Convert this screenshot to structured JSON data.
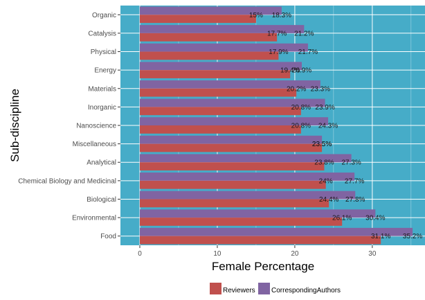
{
  "chart_data": {
    "type": "bar",
    "orientation": "horizontal",
    "categories": [
      "Organic",
      "Catalysis",
      "Physical",
      "Energy",
      "Materials",
      "Inorganic",
      "Nanoscience",
      "Miscellaneous",
      "Analytical",
      "Chemical Biology and Medicinal",
      "Biological",
      "Environmental",
      "Food"
    ],
    "series": [
      {
        "name": "Reviewers",
        "color": "#c0504d",
        "values": [
          15,
          17.7,
          17.9,
          19.4,
          20.2,
          20.8,
          20.8,
          23.5,
          23.8,
          24,
          24.4,
          26.1,
          31.1
        ],
        "labels": [
          "15%",
          "17.7%",
          "17.9%",
          "19.4%",
          "20.2%",
          "20.8%",
          "20.8%",
          "23.5%",
          "23.8%",
          "24%",
          "24.4%",
          "26.1%",
          "31.1%"
        ]
      },
      {
        "name": "CorrespondingAuthors",
        "color": "#8064a2",
        "values": [
          18.3,
          21.2,
          21.7,
          20.9,
          23.3,
          23.9,
          24.3,
          23.5,
          27.3,
          27.7,
          27.8,
          30.4,
          35.2
        ],
        "labels": [
          "18.3%",
          "21.2%",
          "21.7%",
          "20.9%",
          "23.3%",
          "23.9%",
          "24.3%",
          "23.5%",
          "27.3%",
          "27.7%",
          "27.8%",
          "30.4%",
          "35.2%"
        ]
      }
    ],
    "xlabel": "Female Percentage",
    "ylabel": "Sub-discipline",
    "xlim": [
      -2.5,
      36.8
    ],
    "xticks": [
      0,
      10,
      20,
      30
    ],
    "grid": true,
    "panel_color": "#46acc8",
    "legend": {
      "placement": "bottom",
      "entries": [
        "Reviewers",
        "CorrespondingAuthors"
      ]
    }
  }
}
